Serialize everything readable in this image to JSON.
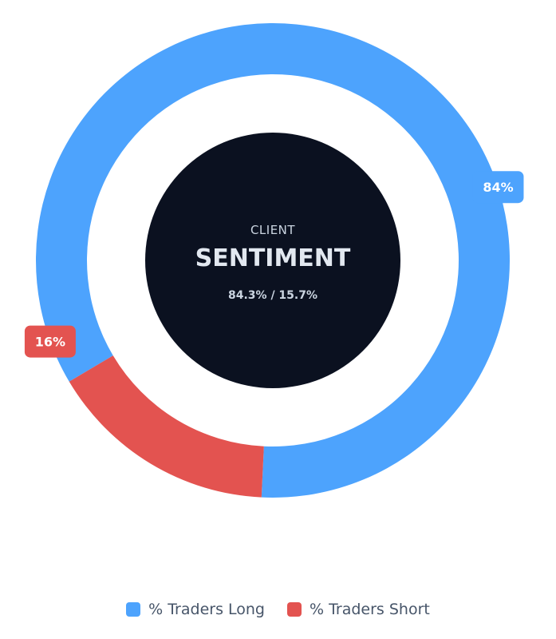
{
  "chart_data": {
    "type": "pie",
    "style": "doughnut",
    "categories": [
      "% Traders Long",
      "% Traders Short"
    ],
    "values": [
      84.3,
      15.7
    ],
    "data_labels": [
      "84%",
      "16%"
    ],
    "colors": [
      "#4da3fd",
      "#e35350"
    ],
    "legend_position": "bottom"
  },
  "center": {
    "subtitle": "CLIENT",
    "title": "SENTIMENT",
    "ratio": "84.3% / 15.7%",
    "bg_color": "#0b1120",
    "title_color": "#e2e8f0",
    "subtitle_color": "#cbd5e1"
  },
  "legend": {
    "items": [
      {
        "label": "% Traders Long",
        "color": "#4da3fd"
      },
      {
        "label": "% Traders Short",
        "color": "#e35350"
      }
    ],
    "text_color": "#475569"
  }
}
